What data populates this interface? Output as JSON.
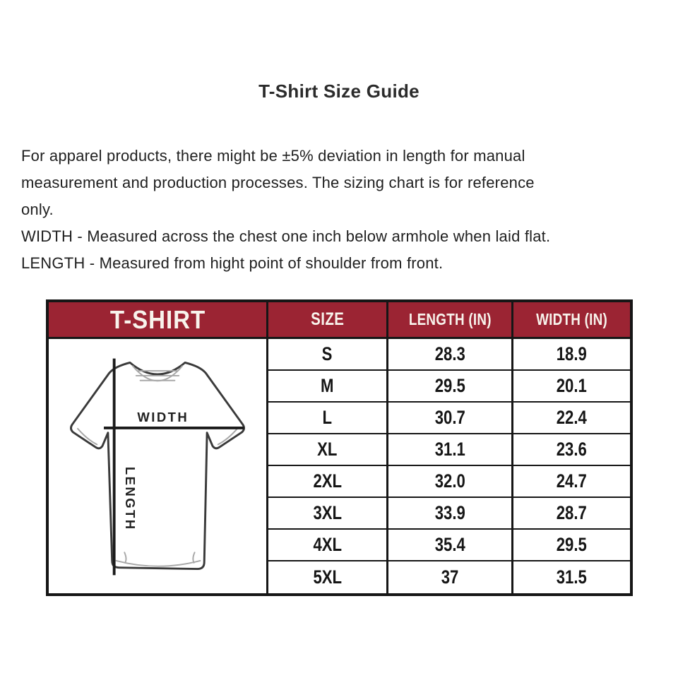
{
  "page": {
    "title": "T-Shirt Size Guide"
  },
  "intro": {
    "lines": [
      "For apparel products, there might be ±5% deviation in length for manual",
      "measurement and production processes. The sizing chart is for reference",
      "only.",
      "WIDTH - Measured across the chest one inch below armhole when laid flat.",
      "LENGTH - Measured from hight point of shoulder from front."
    ]
  },
  "table": {
    "corner_header": "T-SHIRT",
    "columns": [
      "SIZE",
      "LENGTH (IN)",
      "WIDTH (IN)"
    ],
    "rows": [
      {
        "size": "S",
        "length": "28.3",
        "width": "18.9"
      },
      {
        "size": "M",
        "length": "29.5",
        "width": "20.1"
      },
      {
        "size": "L",
        "length": "30.7",
        "width": "22.4"
      },
      {
        "size": "XL",
        "length": "31.1",
        "width": "23.6"
      },
      {
        "size": "2XL",
        "length": "32.0",
        "width": "24.7"
      },
      {
        "size": "3XL",
        "length": "33.9",
        "width": "28.7"
      },
      {
        "size": "4XL",
        "length": "35.4",
        "width": "29.5"
      },
      {
        "size": "5XL",
        "length": "37",
        "width": "31.5"
      }
    ],
    "diagram_labels": {
      "width": "WIDTH",
      "length": "LENGTH"
    }
  },
  "chart_data": {
    "type": "table",
    "title": "T-Shirt Size Guide",
    "columns": [
      "SIZE",
      "LENGTH (IN)",
      "WIDTH (IN)"
    ],
    "rows": [
      [
        "S",
        28.3,
        18.9
      ],
      [
        "M",
        29.5,
        20.1
      ],
      [
        "L",
        30.7,
        22.4
      ],
      [
        "XL",
        31.1,
        23.6
      ],
      [
        "2XL",
        32.0,
        24.7
      ],
      [
        "3XL",
        33.9,
        28.7
      ],
      [
        "4XL",
        35.4,
        29.5
      ],
      [
        "5XL",
        37,
        31.5
      ]
    ]
  },
  "colors": {
    "page_bg": "#ffffff",
    "header_bg": "#9b2433",
    "header_text": "#f8f3ec",
    "table_border": "#161616",
    "title_color": "#2b2b2b",
    "text_primary": "#1f1f1f",
    "diagram_line": "#1b1b1b",
    "shirt_outline": "#3a3a3a",
    "shirt_shade": "#a8a8a8"
  }
}
